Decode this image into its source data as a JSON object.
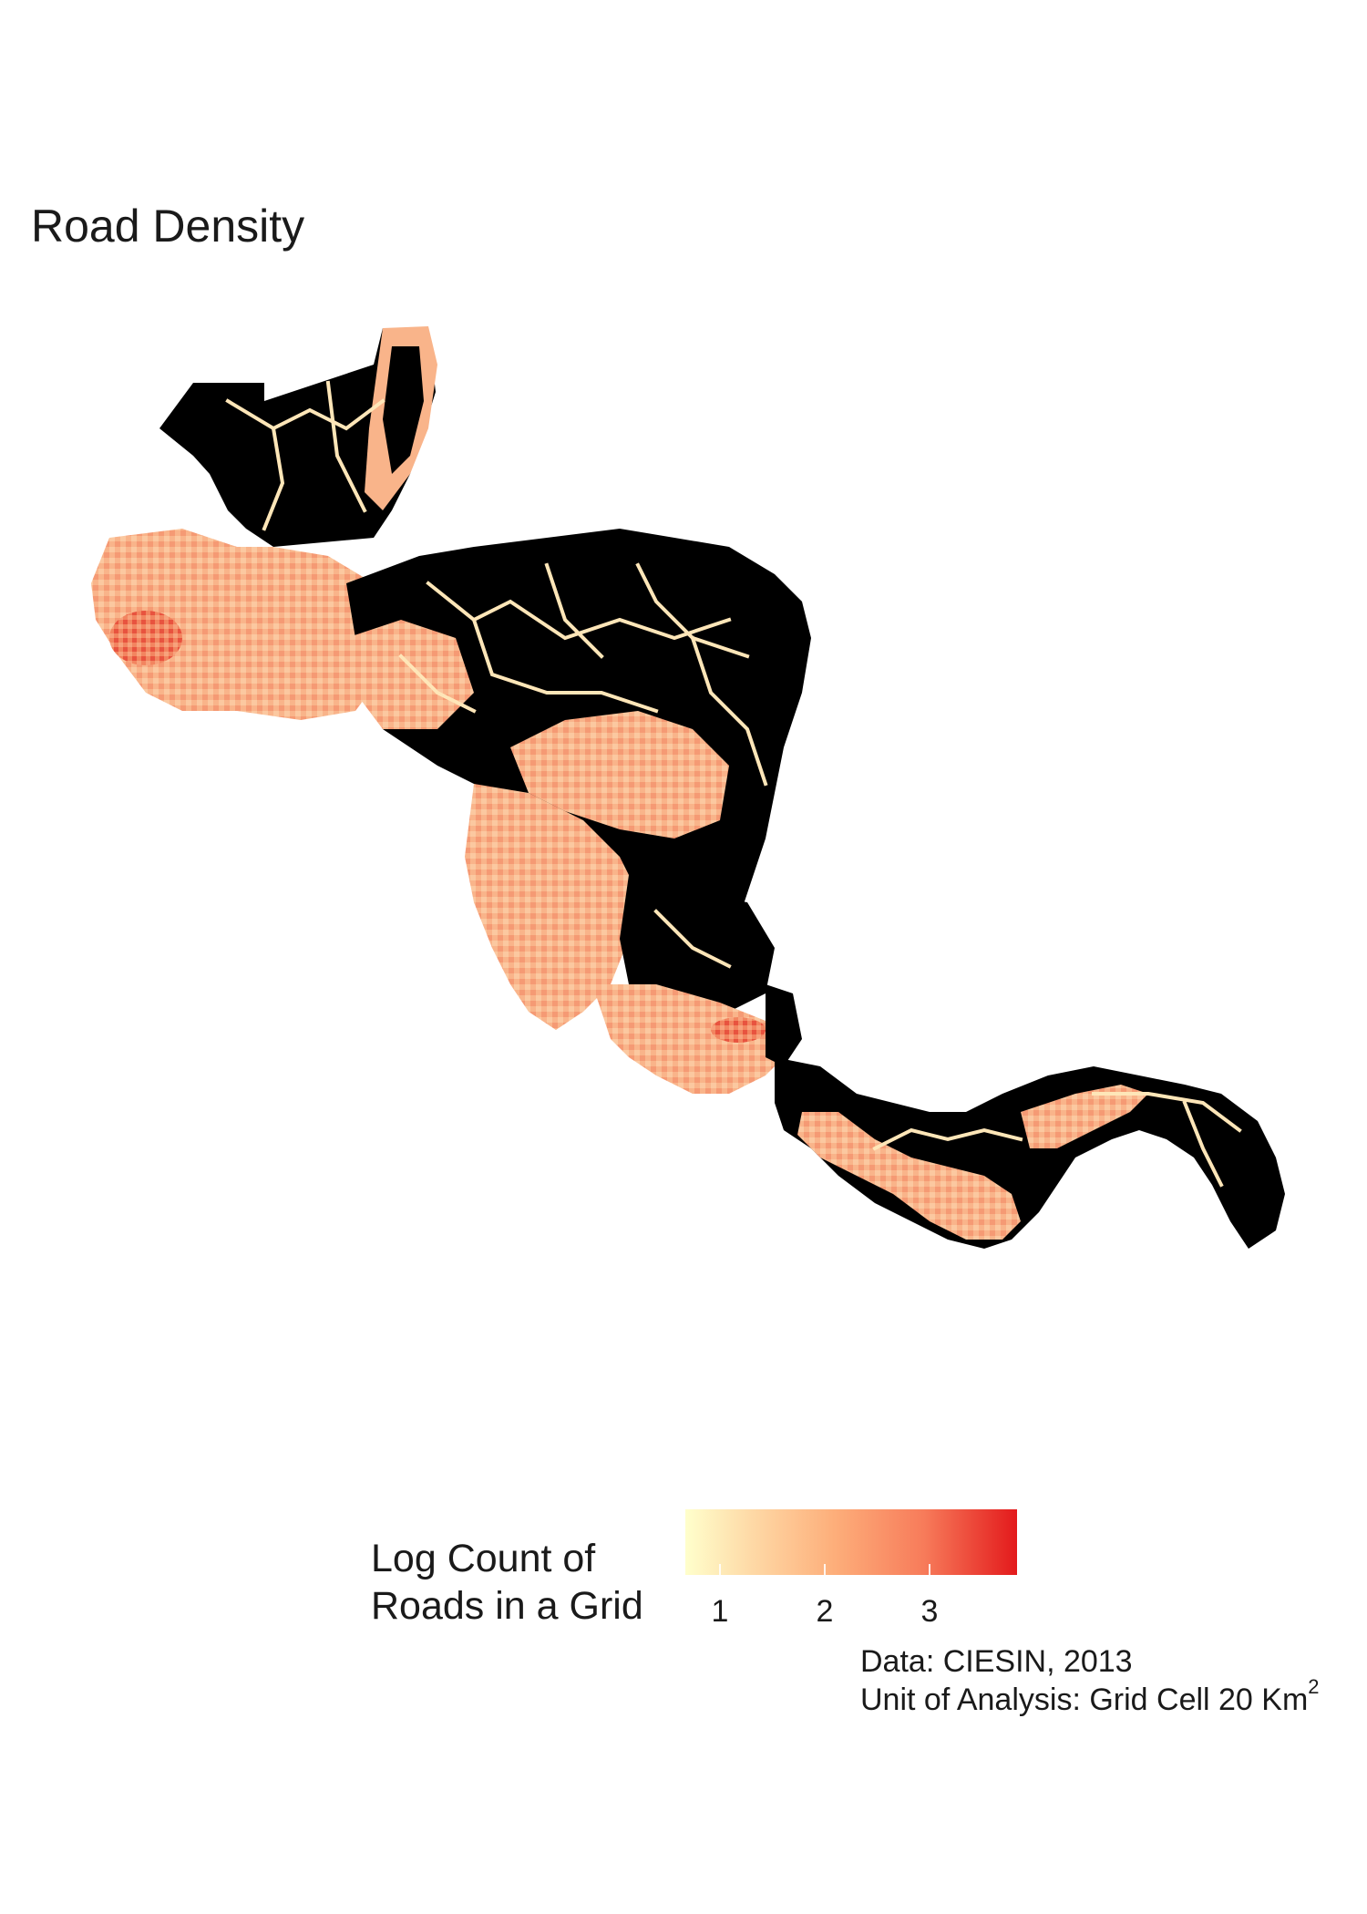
{
  "title": "Road Density",
  "legend": {
    "title_line1": "Log Count of",
    "title_line2": "Roads in a Grid",
    "ticks": [
      "1",
      "2",
      "3"
    ],
    "colors": [
      "#ffffcc",
      "#fed9a6",
      "#fdae7a",
      "#f77b5a",
      "#e31a1c"
    ]
  },
  "caption": {
    "line1": "Data: CIESIN, 2013",
    "line2_text": "Unit of Analysis: Grid Cell 20 Km",
    "line2_sup": "2"
  },
  "map": {
    "land_color": "#000000",
    "road_light": "#fee6b8",
    "road_mid": "#fcb58a",
    "road_dense": "#ef6548"
  }
}
